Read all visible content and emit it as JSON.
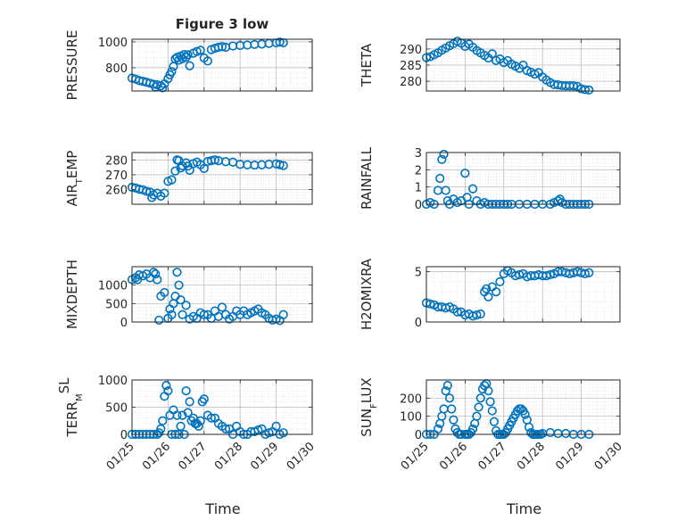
{
  "figure_title": "Figure 3 low",
  "marker_color": "#0072BD",
  "chart_data": [
    {
      "id": "pressure",
      "type": "scatter",
      "title": "Figure 3 low",
      "ylabel": "PRESSURE",
      "ylabel_parts": [
        [
          "PRESSURE",
          ""
        ]
      ],
      "xlabel": "",
      "xlim": [
        0,
        5
      ],
      "ylim": [
        620,
        1020
      ],
      "yticks": [
        800,
        1000
      ],
      "xtick_labels": [],
      "grid": true,
      "minor_grid": true,
      "x": [
        0.0,
        0.1,
        0.2,
        0.3,
        0.4,
        0.5,
        0.6,
        0.65,
        0.7,
        0.8,
        0.85,
        0.9,
        1.0,
        1.05,
        1.1,
        1.15,
        1.2,
        1.25,
        1.3,
        1.35,
        1.4,
        1.45,
        1.5,
        1.55,
        1.6,
        1.7,
        1.8,
        1.9,
        2.0,
        2.1,
        2.2,
        2.3,
        2.4,
        2.5,
        2.6,
        2.8,
        3.0,
        3.2,
        3.4,
        3.6,
        3.8,
        4.0,
        4.1,
        4.2
      ],
      "y": [
        720,
        712,
        700,
        695,
        688,
        680,
        672,
        650,
        668,
        660,
        645,
        675,
        715,
        745,
        770,
        810,
        868,
        880,
        858,
        890,
        870,
        902,
        880,
        900,
        815,
        912,
        925,
        935,
        875,
        852,
        940,
        950,
        958,
        963,
        958,
        968,
        972,
        975,
        980,
        983,
        988,
        992,
        998,
        993
      ]
    },
    {
      "id": "theta",
      "type": "scatter",
      "title": "",
      "ylabel": "THETA",
      "ylabel_parts": [
        [
          "THETA",
          ""
        ]
      ],
      "xlabel": "",
      "xlim": [
        0,
        5
      ],
      "ylim": [
        277,
        293
      ],
      "yticks": [
        280,
        285,
        290
      ],
      "xtick_labels": [],
      "grid": true,
      "minor_grid": true,
      "x": [
        0.0,
        0.1,
        0.2,
        0.3,
        0.4,
        0.5,
        0.6,
        0.7,
        0.8,
        0.9,
        1.0,
        1.1,
        1.2,
        1.3,
        1.4,
        1.5,
        1.6,
        1.7,
        1.8,
        1.9,
        2.0,
        2.1,
        2.2,
        2.3,
        2.4,
        2.5,
        2.6,
        2.7,
        2.8,
        2.9,
        3.0,
        3.1,
        3.2,
        3.3,
        3.4,
        3.5,
        3.6,
        3.7,
        3.8,
        3.9,
        4.0,
        4.1,
        4.2
      ],
      "y": [
        287.3,
        287.6,
        288.2,
        288.8,
        289.6,
        290.3,
        291.0,
        291.6,
        292.4,
        291.8,
        290.8,
        291.5,
        290.5,
        289.5,
        288.8,
        288.0,
        287.2,
        288.5,
        286.4,
        286.9,
        285.8,
        286.4,
        285.3,
        284.7,
        284.0,
        285.0,
        283.3,
        282.8,
        282.2,
        282.7,
        281.3,
        280.4,
        279.6,
        279.0,
        278.9,
        278.7,
        278.6,
        278.6,
        278.6,
        278.4,
        277.7,
        277.4,
        277.3
      ]
    },
    {
      "id": "air_temp",
      "type": "scatter",
      "title": "",
      "ylabel": "AIR_TEMP",
      "ylabel_parts": [
        [
          "AIR",
          ""
        ],
        [
          "T",
          "sub"
        ],
        [
          "EMP",
          ""
        ]
      ],
      "xlabel": "",
      "xlim": [
        0,
        5
      ],
      "ylim": [
        250,
        285
      ],
      "yticks": [
        260,
        270,
        280
      ],
      "xtick_labels": [],
      "grid": true,
      "minor_grid": true,
      "x": [
        0.0,
        0.1,
        0.2,
        0.3,
        0.4,
        0.5,
        0.55,
        0.6,
        0.7,
        0.8,
        0.9,
        1.0,
        1.1,
        1.2,
        1.25,
        1.3,
        1.35,
        1.4,
        1.5,
        1.55,
        1.6,
        1.7,
        1.8,
        1.9,
        2.0,
        2.1,
        2.2,
        2.3,
        2.4,
        2.6,
        2.8,
        3.0,
        3.2,
        3.4,
        3.6,
        3.8,
        4.0,
        4.1,
        4.2
      ],
      "y": [
        261.5,
        261.0,
        260.2,
        259.8,
        258.8,
        258.2,
        254.5,
        256.3,
        257.5,
        255.5,
        257.5,
        265.5,
        266.5,
        272.5,
        280.0,
        279.5,
        274.5,
        276.0,
        278.0,
        275.8,
        273.0,
        277.5,
        278.5,
        276.8,
        274.2,
        279.0,
        279.5,
        280.0,
        279.5,
        278.8,
        278.5,
        277.0,
        276.7,
        276.5,
        276.7,
        277.0,
        277.3,
        276.8,
        276.2
      ]
    },
    {
      "id": "rainfall",
      "type": "scatter",
      "title": "",
      "ylabel": "RAINFALL",
      "ylabel_parts": [
        [
          "RAINFALL",
          ""
        ]
      ],
      "xlabel": "",
      "xlim": [
        0,
        5
      ],
      "ylim": [
        0,
        3
      ],
      "yticks": [
        0,
        1,
        2,
        3
      ],
      "xtick_labels": [],
      "grid": true,
      "minor_grid": true,
      "x": [
        0.0,
        0.1,
        0.2,
        0.3,
        0.35,
        0.4,
        0.45,
        0.5,
        0.55,
        0.6,
        0.7,
        0.8,
        0.9,
        1.0,
        1.05,
        1.1,
        1.2,
        1.3,
        1.4,
        1.5,
        1.6,
        1.7,
        1.8,
        1.9,
        2.0,
        2.1,
        2.2,
        2.4,
        2.6,
        2.8,
        3.0,
        3.2,
        3.3,
        3.4,
        3.45,
        3.5,
        3.6,
        3.7,
        3.8,
        3.9,
        4.0,
        4.1,
        4.2
      ],
      "y": [
        0.0,
        0.1,
        0.0,
        0.8,
        1.5,
        2.6,
        2.9,
        0.8,
        0.2,
        0.0,
        0.3,
        0.1,
        0.2,
        1.8,
        0.4,
        0.0,
        0.9,
        0.2,
        0.0,
        0.1,
        0.0,
        0.0,
        0.0,
        0.0,
        0.0,
        0.0,
        0.0,
        0.0,
        0.0,
        0.0,
        0.0,
        0.0,
        0.1,
        0.2,
        0.3,
        0.1,
        0.0,
        0.0,
        0.0,
        0.0,
        0.0,
        0.0,
        0.0
      ]
    },
    {
      "id": "mixdepth",
      "type": "scatter",
      "title": "",
      "ylabel": "MIXDEPTH",
      "ylabel_parts": [
        [
          "MIXDEPTH",
          ""
        ]
      ],
      "xlabel": "",
      "xlim": [
        0,
        5
      ],
      "ylim": [
        0,
        1500
      ],
      "yticks": [
        0,
        500,
        1000
      ],
      "xtick_labels": [],
      "grid": true,
      "minor_grid": true,
      "x": [
        0.0,
        0.1,
        0.15,
        0.2,
        0.3,
        0.4,
        0.5,
        0.6,
        0.65,
        0.7,
        0.75,
        0.8,
        0.9,
        1.0,
        1.05,
        1.1,
        1.15,
        1.2,
        1.25,
        1.3,
        1.35,
        1.4,
        1.5,
        1.6,
        1.7,
        1.8,
        1.9,
        2.0,
        2.1,
        2.2,
        2.3,
        2.4,
        2.5,
        2.6,
        2.7,
        2.8,
        2.9,
        3.0,
        3.1,
        3.2,
        3.3,
        3.4,
        3.5,
        3.6,
        3.7,
        3.8,
        3.9,
        4.0,
        4.1,
        4.2
      ],
      "y": [
        1150,
        1200,
        1150,
        1280,
        1250,
        1300,
        1200,
        1350,
        1300,
        1150,
        50,
        700,
        800,
        100,
        350,
        200,
        500,
        700,
        1350,
        1000,
        600,
        200,
        450,
        80,
        150,
        100,
        250,
        200,
        200,
        100,
        300,
        150,
        400,
        200,
        80,
        150,
        300,
        200,
        300,
        200,
        250,
        300,
        350,
        250,
        200,
        100,
        50,
        80,
        40,
        200
      ]
    },
    {
      "id": "h2omixra",
      "type": "scatter",
      "title": "",
      "ylabel": "H2OMIXRA",
      "ylabel_parts": [
        [
          "H2OMIXRA",
          ""
        ]
      ],
      "xlabel": "",
      "xlim": [
        0,
        5
      ],
      "ylim": [
        0,
        5.5
      ],
      "yticks": [
        0,
        5
      ],
      "xtick_labels": [],
      "grid": true,
      "minor_grid": true,
      "x": [
        0.0,
        0.1,
        0.2,
        0.3,
        0.4,
        0.5,
        0.6,
        0.7,
        0.8,
        0.9,
        1.0,
        1.1,
        1.2,
        1.3,
        1.4,
        1.5,
        1.55,
        1.6,
        1.7,
        1.8,
        1.9,
        2.0,
        2.1,
        2.2,
        2.3,
        2.4,
        2.5,
        2.6,
        2.7,
        2.8,
        2.9,
        3.0,
        3.1,
        3.2,
        3.3,
        3.4,
        3.5,
        3.6,
        3.7,
        3.8,
        3.9,
        4.0,
        4.1,
        4.2
      ],
      "y": [
        1.9,
        1.8,
        1.7,
        1.5,
        1.5,
        1.4,
        1.5,
        1.3,
        1.0,
        1.0,
        0.7,
        0.8,
        0.6,
        0.7,
        0.8,
        3.0,
        3.3,
        2.5,
        3.5,
        3.0,
        4.0,
        4.8,
        5.1,
        4.9,
        4.6,
        4.7,
        4.8,
        4.5,
        4.6,
        4.6,
        4.7,
        4.6,
        4.6,
        4.7,
        4.8,
        5.0,
        5.0,
        4.9,
        4.8,
        4.9,
        5.0,
        4.9,
        4.8,
        4.9
      ]
    },
    {
      "id": "terr_msl",
      "type": "scatter",
      "title": "",
      "ylabel": "TERR_MSL",
      "ylabel_parts": [
        [
          "TERR",
          ""
        ],
        [
          "M",
          "sub"
        ],
        [
          "SL",
          "sup"
        ]
      ],
      "xlabel": "Time",
      "xlim": [
        0,
        5
      ],
      "ylim": [
        0,
        1000
      ],
      "yticks": [
        0,
        500,
        1000
      ],
      "xtick_labels": [
        "01/25",
        "01/26",
        "01/27",
        "01/28",
        "01/29",
        "01/30"
      ],
      "grid": true,
      "minor_grid": true,
      "x": [
        0.0,
        0.1,
        0.2,
        0.3,
        0.4,
        0.5,
        0.6,
        0.7,
        0.75,
        0.8,
        0.85,
        0.9,
        0.95,
        1.0,
        1.05,
        1.1,
        1.15,
        1.2,
        1.25,
        1.3,
        1.35,
        1.4,
        1.45,
        1.5,
        1.55,
        1.6,
        1.65,
        1.7,
        1.75,
        1.8,
        1.85,
        1.9,
        1.95,
        2.0,
        2.1,
        2.2,
        2.3,
        2.4,
        2.5,
        2.6,
        2.7,
        2.8,
        2.9,
        3.0,
        3.1,
        3.2,
        3.3,
        3.4,
        3.5,
        3.6,
        3.7,
        3.8,
        3.9,
        4.0,
        4.1,
        4.2
      ],
      "y": [
        0,
        0,
        0,
        0,
        0,
        0,
        0,
        0,
        30,
        100,
        250,
        700,
        900,
        800,
        350,
        0,
        450,
        0,
        350,
        0,
        150,
        350,
        0,
        800,
        400,
        600,
        250,
        300,
        200,
        200,
        150,
        250,
        600,
        650,
        350,
        300,
        300,
        200,
        150,
        100,
        100,
        0,
        150,
        50,
        0,
        0,
        50,
        50,
        80,
        100,
        0,
        30,
        50,
        150,
        0,
        30
      ]
    },
    {
      "id": "sun_flux",
      "type": "scatter",
      "title": "",
      "ylabel": "SUN_FLUX",
      "ylabel_parts": [
        [
          "SUN",
          ""
        ],
        [
          "F",
          "sub"
        ],
        [
          "LUX",
          ""
        ]
      ],
      "xlabel": "Time",
      "xlim": [
        0,
        5
      ],
      "ylim": [
        0,
        300
      ],
      "yticks": [
        0,
        100,
        200
      ],
      "xtick_labels": [
        "01/25",
        "01/26",
        "01/27",
        "01/28",
        "01/29",
        "01/30"
      ],
      "grid": true,
      "minor_grid": true,
      "x": [
        0.0,
        0.1,
        0.2,
        0.3,
        0.35,
        0.4,
        0.45,
        0.5,
        0.55,
        0.6,
        0.65,
        0.7,
        0.75,
        0.8,
        0.85,
        0.9,
        1.0,
        1.05,
        1.1,
        1.15,
        1.2,
        1.25,
        1.3,
        1.35,
        1.4,
        1.45,
        1.5,
        1.55,
        1.6,
        1.65,
        1.7,
        1.75,
        1.8,
        1.85,
        1.9,
        1.95,
        2.0,
        2.05,
        2.1,
        2.15,
        2.2,
        2.25,
        2.3,
        2.35,
        2.4,
        2.45,
        2.5,
        2.55,
        2.6,
        2.65,
        2.7,
        2.75,
        2.8,
        2.85,
        2.9,
        2.95,
        3.0,
        3.2,
        3.4,
        3.6,
        3.8,
        4.0,
        4.2
      ],
      "y": [
        0,
        0,
        0,
        30,
        60,
        100,
        140,
        240,
        270,
        200,
        140,
        80,
        30,
        10,
        0,
        0,
        0,
        0,
        0,
        10,
        30,
        60,
        100,
        150,
        200,
        250,
        270,
        280,
        240,
        180,
        130,
        70,
        20,
        0,
        0,
        0,
        0,
        10,
        30,
        50,
        70,
        90,
        110,
        130,
        140,
        140,
        130,
        110,
        80,
        40,
        10,
        0,
        0,
        0,
        0,
        0,
        5,
        10,
        5,
        5,
        0,
        0,
        0
      ]
    }
  ]
}
